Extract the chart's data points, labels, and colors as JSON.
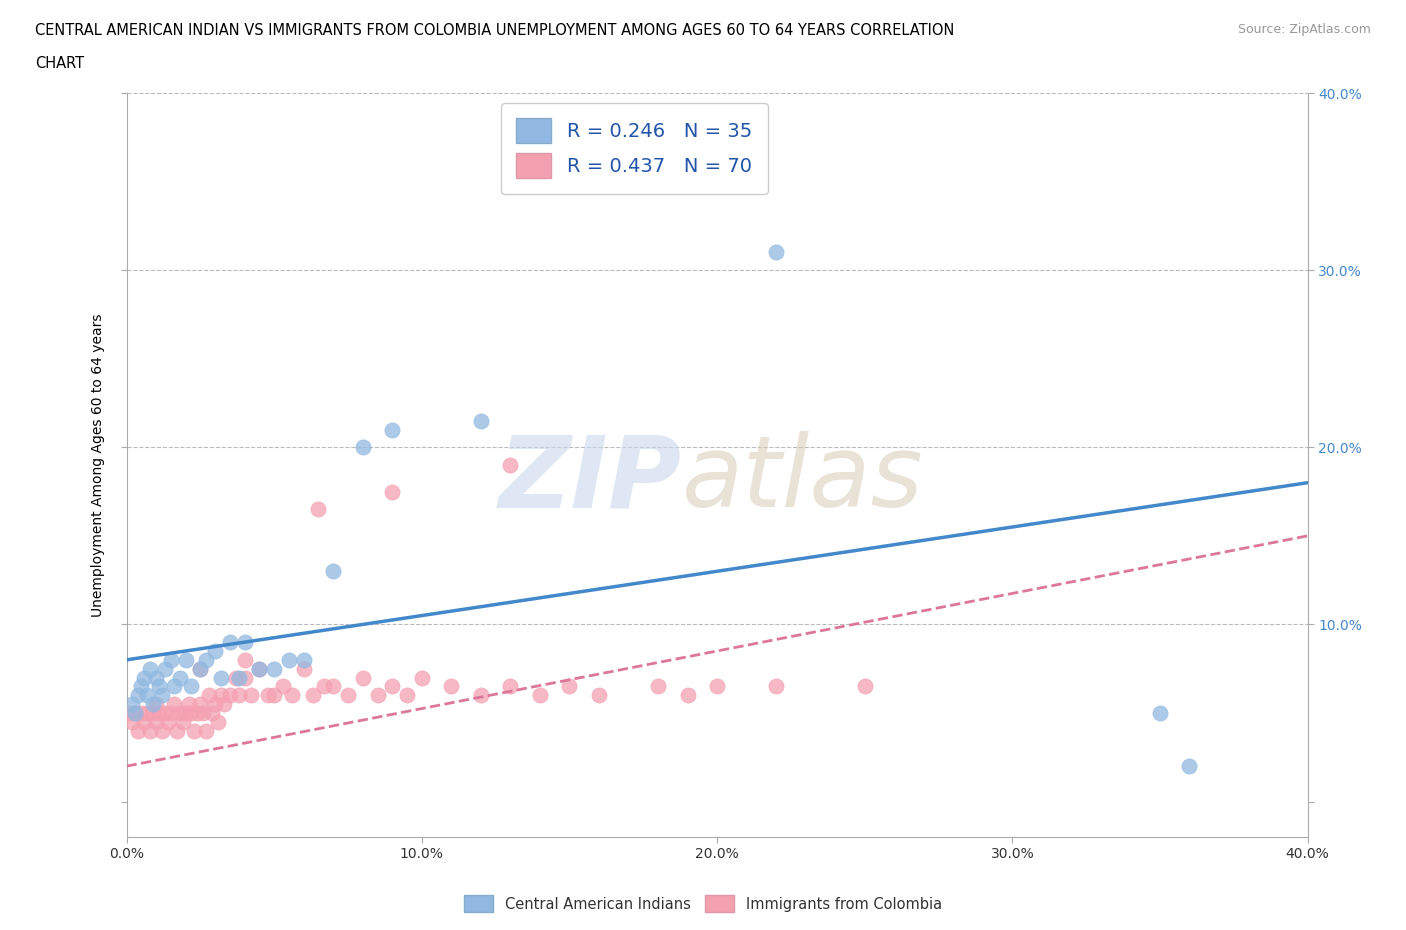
{
  "title_line1": "CENTRAL AMERICAN INDIAN VS IMMIGRANTS FROM COLOMBIA UNEMPLOYMENT AMONG AGES 60 TO 64 YEARS CORRELATION",
  "title_line2": "CHART",
  "source_text": "Source: ZipAtlas.com",
  "watermark_zip": "ZIP",
  "watermark_atlas": "atlas",
  "ylabel": "Unemployment Among Ages 60 to 64 years",
  "xlim": [
    0.0,
    0.4
  ],
  "ylim": [
    -0.02,
    0.4
  ],
  "xticks": [
    0.0,
    0.1,
    0.2,
    0.3,
    0.4
  ],
  "yticks": [
    0.0,
    0.1,
    0.2,
    0.3,
    0.4
  ],
  "xtick_labels": [
    "0.0%",
    "10.0%",
    "20.0%",
    "30.0%",
    "40.0%"
  ],
  "right_ytick_labels": [
    "",
    "10.0%",
    "20.0%",
    "30.0%",
    "40.0%"
  ],
  "grid_yticks": [
    0.1,
    0.2,
    0.3,
    0.4
  ],
  "R_blue": 0.246,
  "N_blue": 35,
  "R_pink": 0.437,
  "N_pink": 70,
  "blue_color": "#90B8E0",
  "pink_color": "#F4A0B0",
  "blue_line_color": "#4488CC",
  "pink_line_color": "#DD7799",
  "legend_label_blue": "Central American Indians",
  "legend_label_pink": "Immigrants from Colombia",
  "blue_scatter_x": [
    0.002,
    0.003,
    0.004,
    0.005,
    0.006,
    0.007,
    0.008,
    0.009,
    0.01,
    0.011,
    0.012,
    0.013,
    0.015,
    0.016,
    0.018,
    0.02,
    0.022,
    0.025,
    0.027,
    0.03,
    0.032,
    0.035,
    0.038,
    0.04,
    0.045,
    0.05,
    0.055,
    0.06,
    0.07,
    0.08,
    0.09,
    0.12,
    0.22,
    0.35,
    0.36
  ],
  "blue_scatter_y": [
    0.055,
    0.05,
    0.06,
    0.065,
    0.07,
    0.06,
    0.075,
    0.055,
    0.07,
    0.065,
    0.06,
    0.075,
    0.08,
    0.065,
    0.07,
    0.08,
    0.065,
    0.075,
    0.08,
    0.085,
    0.07,
    0.09,
    0.07,
    0.09,
    0.075,
    0.075,
    0.08,
    0.08,
    0.13,
    0.2,
    0.21,
    0.215,
    0.31,
    0.05,
    0.02
  ],
  "pink_scatter_x": [
    0.001,
    0.002,
    0.003,
    0.004,
    0.005,
    0.006,
    0.007,
    0.008,
    0.009,
    0.01,
    0.01,
    0.011,
    0.012,
    0.013,
    0.014,
    0.015,
    0.016,
    0.017,
    0.018,
    0.019,
    0.02,
    0.021,
    0.022,
    0.023,
    0.024,
    0.025,
    0.026,
    0.027,
    0.028,
    0.029,
    0.03,
    0.031,
    0.032,
    0.033,
    0.035,
    0.037,
    0.038,
    0.04,
    0.042,
    0.045,
    0.048,
    0.05,
    0.053,
    0.056,
    0.06,
    0.063,
    0.067,
    0.07,
    0.075,
    0.08,
    0.085,
    0.09,
    0.095,
    0.1,
    0.11,
    0.12,
    0.13,
    0.14,
    0.15,
    0.16,
    0.18,
    0.19,
    0.2,
    0.22,
    0.25,
    0.13,
    0.09,
    0.065,
    0.04,
    0.025
  ],
  "pink_scatter_y": [
    0.05,
    0.045,
    0.05,
    0.04,
    0.05,
    0.045,
    0.05,
    0.04,
    0.05,
    0.045,
    0.055,
    0.05,
    0.04,
    0.05,
    0.045,
    0.05,
    0.055,
    0.04,
    0.05,
    0.045,
    0.05,
    0.055,
    0.05,
    0.04,
    0.05,
    0.055,
    0.05,
    0.04,
    0.06,
    0.05,
    0.055,
    0.045,
    0.06,
    0.055,
    0.06,
    0.07,
    0.06,
    0.07,
    0.06,
    0.075,
    0.06,
    0.06,
    0.065,
    0.06,
    0.075,
    0.06,
    0.065,
    0.065,
    0.06,
    0.07,
    0.06,
    0.065,
    0.06,
    0.07,
    0.065,
    0.06,
    0.065,
    0.06,
    0.065,
    0.06,
    0.065,
    0.06,
    0.065,
    0.065,
    0.065,
    0.19,
    0.175,
    0.165,
    0.08,
    0.075
  ],
  "blue_trend_x": [
    0.0,
    0.4
  ],
  "blue_trend_y": [
    0.08,
    0.18
  ],
  "pink_trend_x": [
    0.0,
    0.4
  ],
  "pink_trend_y": [
    0.02,
    0.15
  ]
}
